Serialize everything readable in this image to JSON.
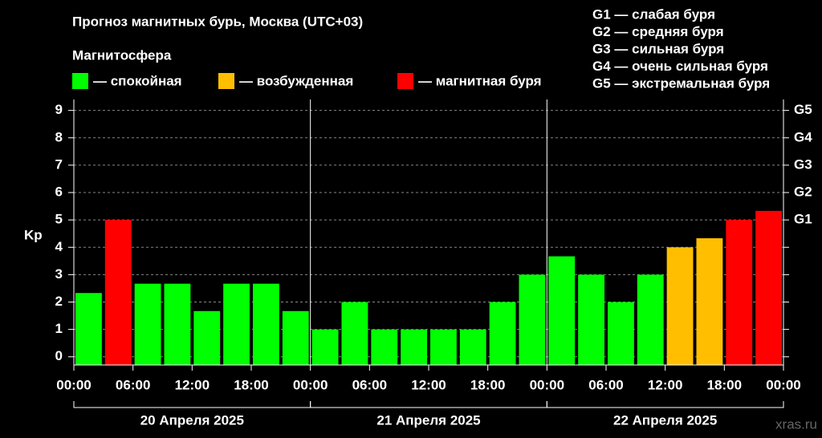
{
  "chart_data": {
    "type": "bar",
    "title": "Прогноз магнитных бурь, Москва (UTC+03)",
    "legend_title": "Магнитосфера",
    "legend": [
      {
        "label": "— спокойная",
        "color": "#00ff00"
      },
      {
        "label": "— возбужденная",
        "color": "#ffbf00"
      },
      {
        "label": "— магнитная буря",
        "color": "#ff0000"
      }
    ],
    "g_scale": [
      "G1 — слабая буря",
      "G2 — средняя буря",
      "G3 — сильная буря",
      "G4 — очень сильная буря",
      "G5 — экстремальная буря"
    ],
    "y_label": "Kp",
    "x": [
      0,
      3,
      6,
      9,
      12,
      15,
      18,
      21,
      24,
      27,
      30,
      33,
      36,
      39,
      42,
      45,
      48,
      51,
      54,
      57,
      60,
      63,
      66,
      69
    ],
    "values": [
      2.33,
      5,
      2.67,
      2.67,
      1.67,
      2.67,
      2.67,
      1.67,
      1,
      2,
      1,
      1,
      1,
      1,
      2,
      3,
      3.67,
      3,
      2,
      3,
      4,
      4.33,
      5,
      5.33
    ],
    "colors": [
      "#00ff00",
      "#ff0000",
      "#00ff00",
      "#00ff00",
      "#00ff00",
      "#00ff00",
      "#00ff00",
      "#00ff00",
      "#00ff00",
      "#00ff00",
      "#00ff00",
      "#00ff00",
      "#00ff00",
      "#00ff00",
      "#00ff00",
      "#00ff00",
      "#00ff00",
      "#00ff00",
      "#00ff00",
      "#00ff00",
      "#ffbf00",
      "#ffbf00",
      "#ff0000",
      "#ff0000"
    ],
    "xlim": [
      0,
      72
    ],
    "xticks": [
      {
        "value": 0,
        "label": "00:00"
      },
      {
        "value": 6,
        "label": "06:00"
      },
      {
        "value": 12,
        "label": "12:00"
      },
      {
        "value": 18,
        "label": "18:00"
      },
      {
        "value": 24,
        "label": "00:00"
      },
      {
        "value": 30,
        "label": "06:00"
      },
      {
        "value": 36,
        "label": "12:00"
      },
      {
        "value": 42,
        "label": "18:00"
      },
      {
        "value": 48,
        "label": "00:00"
      },
      {
        "value": 54,
        "label": "06:00"
      },
      {
        "value": 60,
        "label": "12:00"
      },
      {
        "value": 66,
        "label": "18:00"
      },
      {
        "value": 72,
        "label": "00:00"
      }
    ],
    "days": [
      "20 Апреля 2025",
      "21 Апреля 2025",
      "22 Апреля 2025"
    ],
    "ylim": [
      -0.3,
      9.4
    ],
    "yticks": [
      0,
      1,
      2,
      3,
      4,
      5,
      6,
      7,
      8,
      9
    ],
    "y2ticks": [
      {
        "value": 5,
        "label": "G1"
      },
      {
        "value": 6,
        "label": "G2"
      },
      {
        "value": 7,
        "label": "G3"
      },
      {
        "value": 8,
        "label": "G4"
      },
      {
        "value": 9,
        "label": "G5"
      }
    ],
    "grid": true,
    "watermark": "xras.ru"
  }
}
